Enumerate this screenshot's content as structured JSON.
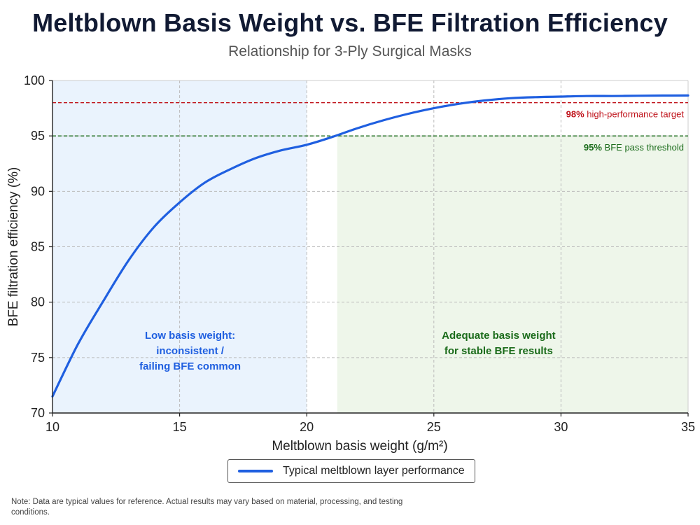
{
  "title": "Meltblown Basis Weight vs. BFE Filtration Efficiency",
  "subtitle": "Relationship for 3-Ply Surgical Masks",
  "note": "Note: Data are typical values for reference. Actual results may vary based on material, processing, and testing conditions.",
  "colors": {
    "curve": "#1f5fe0",
    "target_line": "#c0141c",
    "threshold_line": "#1a6b1a",
    "low_zone_fill": "#eaf3fd",
    "adequate_zone_fill": "#eef6ea",
    "low_zone_text": "#1f5fe0",
    "adequate_zone_text": "#1a6b1a"
  },
  "chart_data": {
    "type": "line",
    "xlabel": "Meltblown basis weight (g/m²)",
    "ylabel": "BFE filtration efficiency (%)",
    "xlim": [
      10,
      35
    ],
    "ylim": [
      70,
      100
    ],
    "x_ticks": [
      "10",
      "15",
      "20",
      "25",
      "30",
      "35"
    ],
    "y_ticks": [
      "70",
      "75",
      "80",
      "85",
      "90",
      "95",
      "100"
    ],
    "grid": true,
    "legend_placement": "bottom-center",
    "series": [
      {
        "name": "Typical meltblown layer performance",
        "x": [
          10,
          11,
          12,
          13,
          14,
          15,
          16,
          17,
          18,
          19,
          20,
          21,
          22,
          23,
          24,
          25,
          26,
          27,
          28,
          29,
          30,
          31,
          32,
          33,
          34,
          35
        ],
        "y": [
          71.5,
          76.2,
          80.1,
          83.8,
          86.8,
          89.0,
          90.8,
          92.0,
          93.0,
          93.7,
          94.2,
          94.9,
          95.7,
          96.4,
          97.0,
          97.5,
          97.9,
          98.2,
          98.4,
          98.5,
          98.55,
          98.6,
          98.6,
          98.62,
          98.64,
          98.65
        ]
      }
    ],
    "reference_lines": [
      {
        "y": 98,
        "label_value": "98%",
        "label_text": "high-performance target"
      },
      {
        "y": 95,
        "label_value": "95%",
        "label_text": "BFE pass threshold"
      }
    ],
    "zones": [
      {
        "x_start": 10,
        "x_end": 20,
        "label_lines": [
          "Low basis weight:",
          "inconsistent /",
          "failing BFE common"
        ]
      },
      {
        "x_start": 21.2,
        "x_end": 35,
        "y_top": 95,
        "label_lines": [
          "Adequate basis weight",
          "for stable BFE results"
        ]
      }
    ]
  }
}
